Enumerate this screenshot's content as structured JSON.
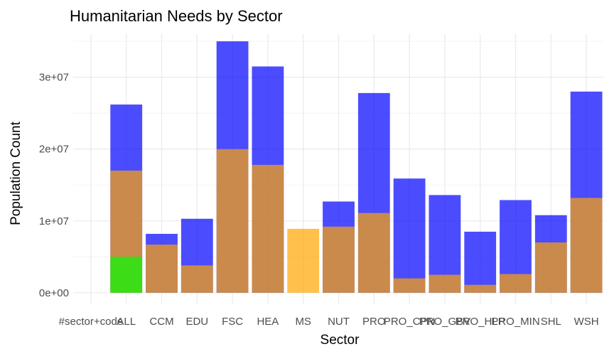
{
  "chart_data": {
    "type": "bar",
    "title": "Humanitarian Needs by Sector",
    "xlabel": "Sector",
    "ylabel": "Population Count",
    "ylim": [
      -1500000,
      36000000
    ],
    "yticks": [
      0,
      10000000,
      20000000,
      30000000
    ],
    "ytick_labels": [
      "0e+00",
      "1e+07",
      "2e+07",
      "3e+07"
    ],
    "grid": true,
    "legend": "none",
    "categories": [
      "#sector+code",
      "ALL",
      "CCM",
      "EDU",
      "FSC",
      "HEA",
      "MS",
      "NUT",
      "PRO",
      "PRO_CPN",
      "PRO_GBV",
      "PRO_HLP",
      "PRO_MIN",
      "SHL",
      "WSH"
    ],
    "series": [
      {
        "color": "#0000ff",
        "values": [
          null,
          26200000,
          8200000,
          10300000,
          35000000,
          31500000,
          null,
          12700000,
          27800000,
          15900000,
          13600000,
          8500000,
          12900000,
          10800000,
          28000000
        ]
      },
      {
        "color": "#ffa500",
        "values": [
          null,
          17000000,
          6700000,
          3800000,
          20000000,
          17800000,
          8900000,
          9200000,
          11100000,
          2000000,
          2500000,
          1100000,
          2600000,
          7000000,
          13200000
        ]
      },
      {
        "color": "#00ff00",
        "values": [
          null,
          5000000,
          null,
          null,
          null,
          null,
          null,
          null,
          null,
          null,
          null,
          null,
          null,
          null,
          null
        ]
      }
    ],
    "bar_opacity": 0.7
  }
}
